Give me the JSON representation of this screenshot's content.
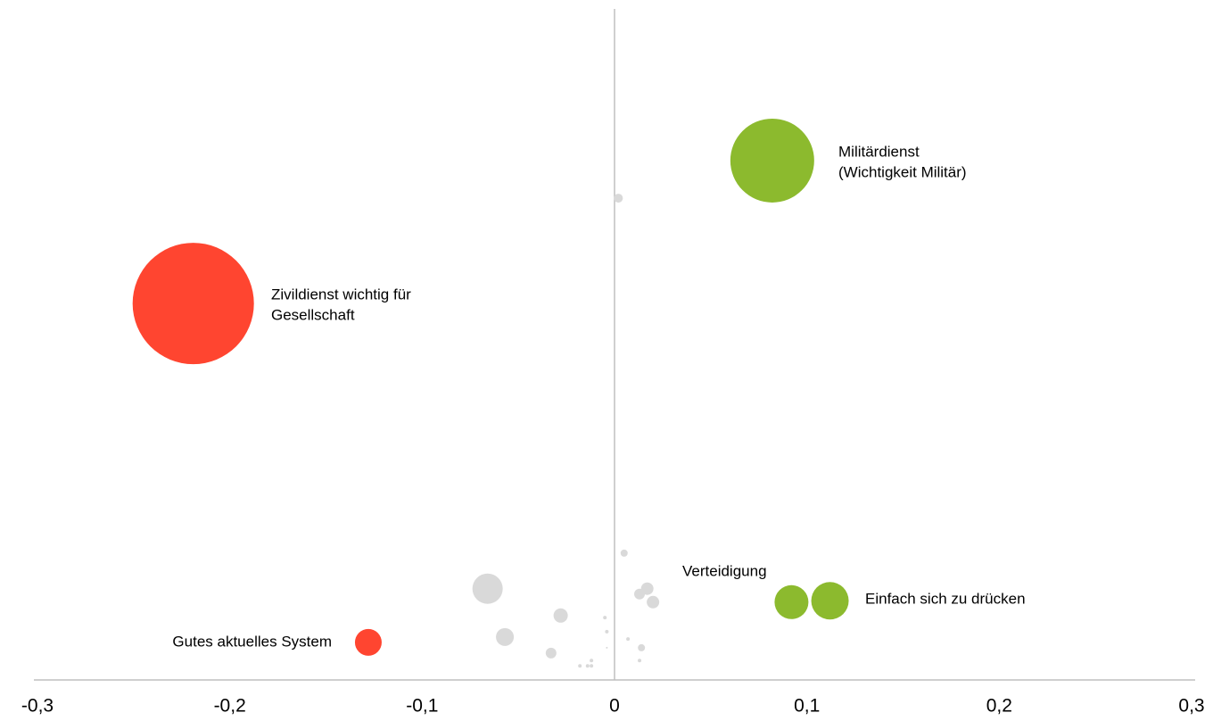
{
  "chart_data": {
    "type": "bubble",
    "x": [
      0.082,
      -0.219,
      -0.128,
      0.092,
      0.112,
      0.002,
      -0.066,
      -0.057,
      -0.028,
      -0.033,
      0.005,
      0.013,
      0.017,
      0.02,
      0.014,
      -0.005,
      -0.004,
      0.007,
      0.013,
      -0.012,
      -0.014,
      -0.018,
      -0.012,
      -0.004
    ],
    "y": [
      0.774,
      0.561,
      0.056,
      0.116,
      0.118,
      0.718,
      0.136,
      0.064,
      0.096,
      0.04,
      0.189,
      0.128,
      0.136,
      0.116,
      0.048,
      0.093,
      0.072,
      0.061,
      0.029,
      0.029,
      0.021,
      0.021,
      0.021,
      0.048
    ],
    "sizes": [
      47,
      68,
      15,
      19,
      21,
      5,
      17,
      10,
      8,
      6,
      4,
      6,
      7,
      7,
      4,
      2,
      2,
      2,
      2,
      2,
      2,
      2,
      2,
      1
    ],
    "colors": [
      "#8cba2e",
      "#ff4530",
      "#ff4530",
      "#8cba2e",
      "#8cba2e",
      "#d9d9d9",
      "#d9d9d9",
      "#d9d9d9",
      "#d9d9d9",
      "#d9d9d9",
      "#d9d9d9",
      "#d9d9d9",
      "#d9d9d9",
      "#d9d9d9",
      "#d9d9d9",
      "#d9d9d9",
      "#d9d9d9",
      "#d9d9d9",
      "#d9d9d9",
      "#d9d9d9",
      "#d9d9d9",
      "#d9d9d9",
      "#d9d9d9",
      "#d9d9d9"
    ],
    "labels": [
      [
        "Militärdienst",
        "(Wichtigkeit Militär)"
      ],
      [
        "Zivildienst wichtig für",
        "Gesellschaft"
      ],
      [
        "Gutes aktuelles System"
      ],
      [
        "Verteidigung"
      ],
      [
        "Einfach sich zu drücken"
      ]
    ],
    "xlim": [
      -0.3,
      0.3
    ],
    "xticks": [
      {
        "value": -0.3,
        "label": "-0,3"
      },
      {
        "value": -0.2,
        "label": "-0,2"
      },
      {
        "value": -0.1,
        "label": "-0,1"
      },
      0,
      {
        "value": 0.1,
        "label": "0,1"
      },
      {
        "value": 0.2,
        "label": "0,2"
      },
      {
        "value": 0.3,
        "label": "0,3"
      }
    ],
    "ylim": [
      0,
      1
    ]
  }
}
